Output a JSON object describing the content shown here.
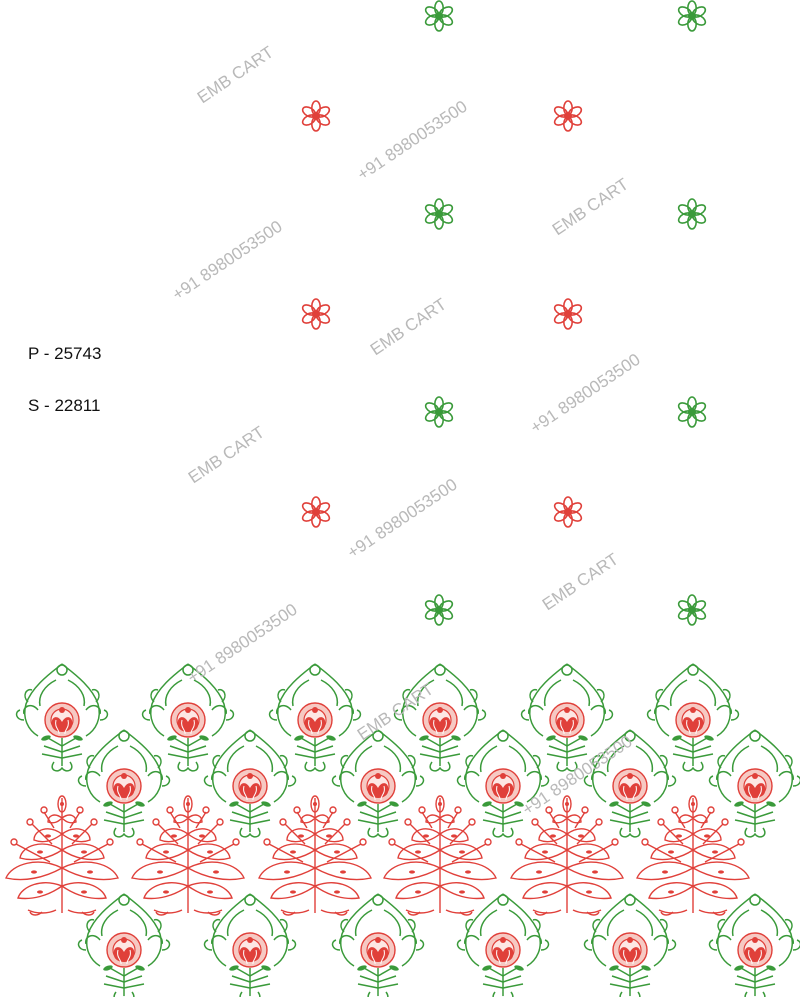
{
  "design_codes": {
    "primary": "P - 25743",
    "secondary": "S - 22811"
  },
  "watermark": {
    "brand": "EMB CART",
    "phone": "+91 8980053500"
  },
  "colors": {
    "green": "#3a9a3a",
    "red": "#e0403a",
    "pink": "#f3b1aa",
    "background": "#ffffff"
  },
  "motifs": {
    "scattered_green_flower": "green-flower-icon",
    "scattered_red_flower": "red-flower-icon",
    "border_green_paisley": "green-paisley-motif",
    "border_red_tree": "red-tree-motif"
  }
}
